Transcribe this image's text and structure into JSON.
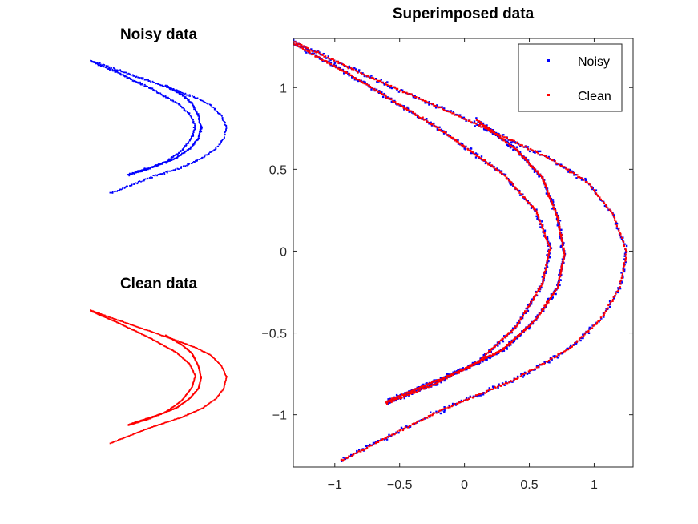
{
  "colors": {
    "noisy": "#0000ff",
    "clean": "#ff0000",
    "axis": "#262626"
  },
  "chart_data": [
    {
      "type": "scatter",
      "title": "Noisy data",
      "axes_visible": false,
      "series": [
        {
          "name": "Noisy",
          "color": "#0000ff",
          "noisy": true
        }
      ]
    },
    {
      "type": "scatter",
      "title": "Clean data",
      "axes_visible": false,
      "series": [
        {
          "name": "Clean",
          "color": "#ff0000",
          "noisy": false
        }
      ]
    },
    {
      "type": "scatter",
      "title": "Superimposed data",
      "xlabel": "",
      "ylabel": "",
      "xlim": [
        -1.32,
        1.3
      ],
      "ylim": [
        -1.32,
        1.3
      ],
      "xticks": [
        -1,
        -0.5,
        0,
        0.5,
        1
      ],
      "xtick_labels": [
        "−1",
        "−0.5",
        "0",
        "0.5",
        "1"
      ],
      "yticks": [
        -1,
        -0.5,
        0,
        0.5,
        1
      ],
      "ytick_labels": [
        "−1",
        "−0.5",
        "0",
        "0.5",
        "1"
      ],
      "grid": false,
      "legend": {
        "placement": "top-right",
        "entries": [
          "Noisy",
          "Clean"
        ]
      },
      "series": [
        {
          "name": "Noisy",
          "color": "#0000ff",
          "noisy": true
        },
        {
          "name": "Clean",
          "color": "#ff0000",
          "noisy": false
        }
      ],
      "curves": [
        {
          "name": "outer-arc",
          "points": [
            [
              -1.32,
              1.28
            ],
            [
              -0.8,
              1.09
            ],
            [
              -0.2,
              0.88
            ],
            [
              0.3,
              0.7
            ],
            [
              0.65,
              0.57
            ],
            [
              0.95,
              0.42
            ],
            [
              1.15,
              0.22
            ],
            [
              1.25,
              0
            ],
            [
              1.2,
              -0.22
            ],
            [
              1.05,
              -0.42
            ],
            [
              0.8,
              -0.6
            ],
            [
              0.4,
              -0.78
            ],
            [
              -0.2,
              -0.98
            ],
            [
              -0.95,
              -1.28
            ]
          ]
        },
        {
          "name": "inner-upper-arc",
          "points": [
            [
              -1.32,
              1.27
            ],
            [
              -0.8,
              1.04
            ],
            [
              -0.2,
              0.75
            ],
            [
              0.3,
              0.47
            ],
            [
              0.55,
              0.25
            ],
            [
              0.66,
              0.02
            ],
            [
              0.6,
              -0.2
            ],
            [
              0.4,
              -0.46
            ],
            [
              0.1,
              -0.68
            ],
            [
              -0.25,
              -0.82
            ],
            [
              -0.6,
              -0.93
            ]
          ]
        },
        {
          "name": "inner-lower-arc",
          "points": [
            [
              0.1,
              0.8
            ],
            [
              0.4,
              0.62
            ],
            [
              0.6,
              0.45
            ],
            [
              0.72,
              0.2
            ],
            [
              0.77,
              -0.02
            ],
            [
              0.72,
              -0.22
            ],
            [
              0.55,
              -0.42
            ],
            [
              0.3,
              -0.6
            ],
            [
              0.0,
              -0.72
            ],
            [
              -0.3,
              -0.82
            ],
            [
              -0.6,
              -0.92
            ]
          ]
        }
      ]
    }
  ]
}
